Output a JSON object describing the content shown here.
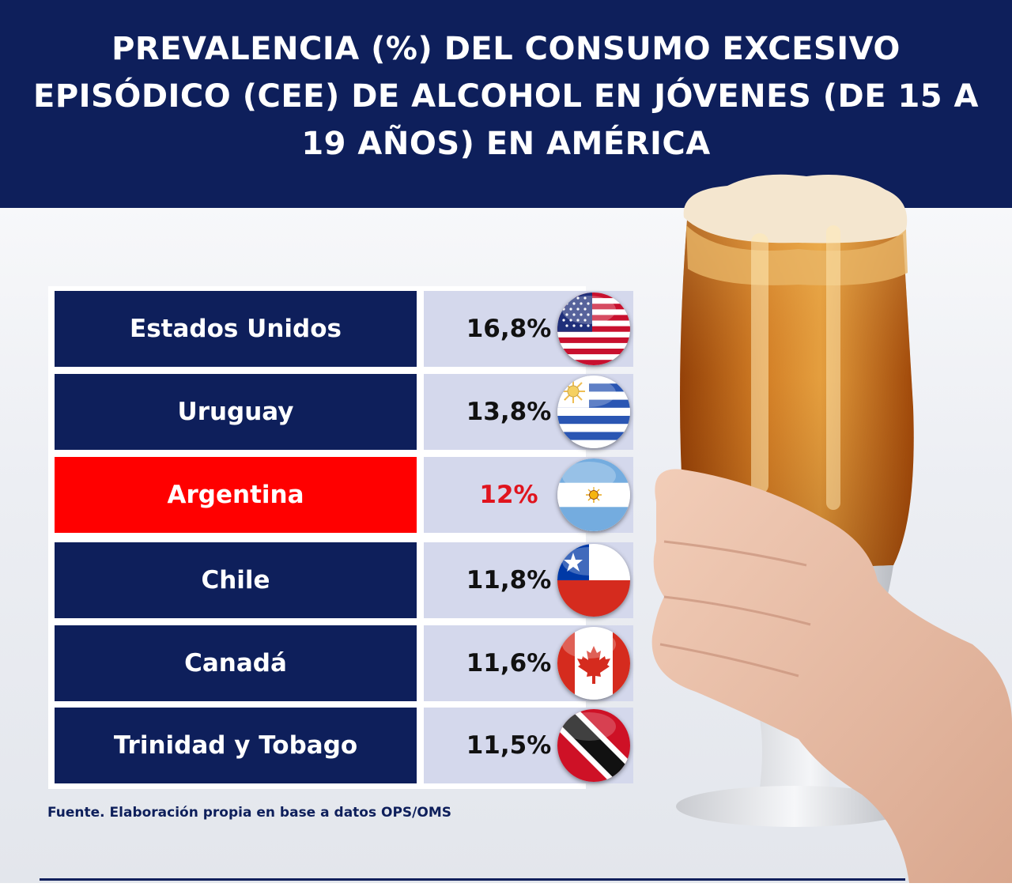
{
  "title": "PREVALENCIA (%) DEL CONSUMO EXCESIVO EPISÓDICO (CEE) DE ALCOHOL EN JÓVENES (DE 15 A 19 AÑOS) EN AMÉRICA",
  "source": "Fuente. Elaboración propia en base a datos OPS/OMS",
  "colors": {
    "navy": "#0e1f5b",
    "highlight": "#ff0000",
    "highlight_text": "#e0141e",
    "value_bg": "#d4d8ec"
  },
  "rows": [
    {
      "country": "Estados Unidos",
      "value_label": "16,8%",
      "flag": "usa-flag-icon"
    },
    {
      "country": "Uruguay",
      "value_label": "13,8%",
      "flag": "uruguay-flag-icon"
    },
    {
      "country": "Argentina",
      "value_label": "12%",
      "flag": "argentina-flag-icon",
      "highlight": true
    },
    {
      "country": "Chile",
      "value_label": "11,8%",
      "flag": "chile-flag-icon"
    },
    {
      "country": "Canadá",
      "value_label": "11,6%",
      "flag": "canada-flag-icon"
    },
    {
      "country": "Trinidad y Tobago",
      "value_label": "11,5%",
      "flag": "trinidad-flag-icon"
    }
  ],
  "chart_data": {
    "type": "table",
    "title": "PREVALENCIA (%) DEL CONSUMO EXCESIVO EPISÓDICO (CEE) DE ALCOHOL EN JÓVENES (DE 15 A 19 AÑOS) EN AMÉRICA",
    "categories": [
      "Estados Unidos",
      "Uruguay",
      "Argentina",
      "Chile",
      "Canadá",
      "Trinidad y Tobago"
    ],
    "values": [
      16.8,
      13.8,
      12,
      11.8,
      11.6,
      11.5
    ],
    "highlighted": "Argentina"
  }
}
